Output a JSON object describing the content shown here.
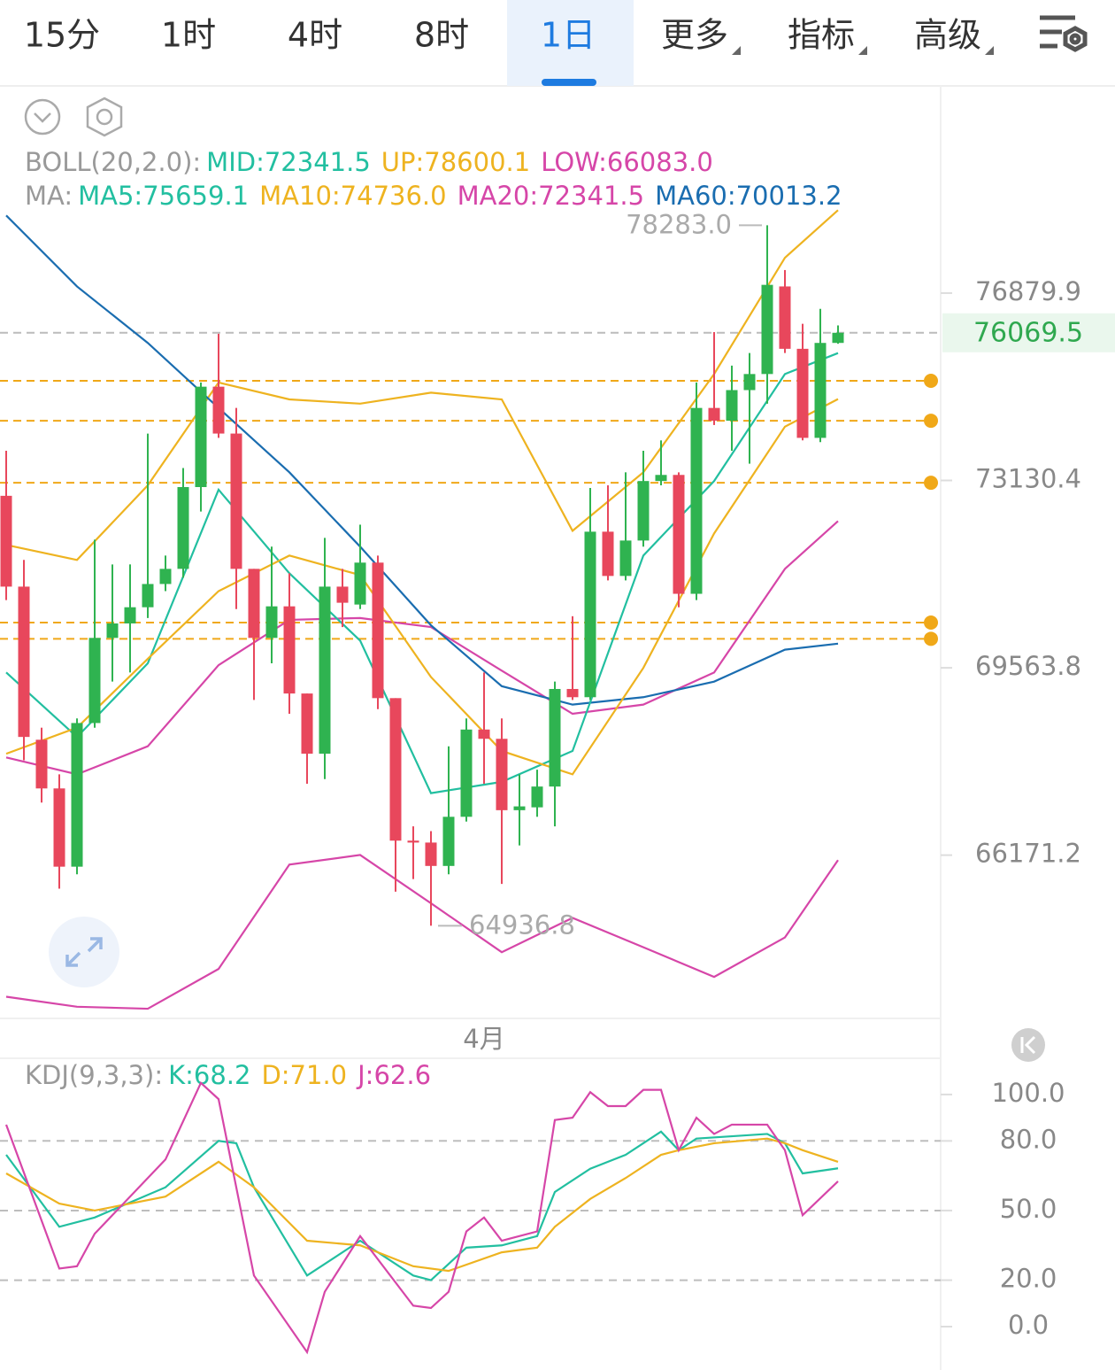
{
  "tabs": [
    {
      "label": "15分",
      "dropdown": false
    },
    {
      "label": "1时",
      "dropdown": false
    },
    {
      "label": "4时",
      "dropdown": false
    },
    {
      "label": "8时",
      "dropdown": false
    },
    {
      "label": "1日",
      "dropdown": false
    },
    {
      "label": "更多",
      "dropdown": true
    },
    {
      "label": "指标",
      "dropdown": true
    },
    {
      "label": "高级",
      "dropdown": true
    }
  ],
  "active_tab": 4,
  "chart_data": [
    {
      "type": "candlestick",
      "indicator_legends": [
        {
          "label": "BOLL(20,2.0):",
          "items": [
            {
              "text": "MID:72341.5",
              "color": "#22bfa0"
            },
            {
              "text": "UP:78600.1",
              "color": "#eeb320"
            },
            {
              "text": "LOW:66083.0",
              "color": "#d646a8"
            }
          ]
        },
        {
          "label": "MA:",
          "items": [
            {
              "text": "MA5:75659.1",
              "color": "#22bfa0"
            },
            {
              "text": "MA10:74736.0",
              "color": "#eeb320"
            },
            {
              "text": "MA20:72341.5",
              "color": "#d646a8"
            },
            {
              "text": "MA60:70013.2",
              "color": "#1a6db0"
            }
          ]
        }
      ],
      "open": [
        72831,
        71087,
        68241,
        67360,
        65968,
        68546,
        70121,
        70392,
        70697,
        71137,
        71425,
        73001,
        74983,
        74051,
        71425,
        70121,
        70714,
        69088,
        67987,
        71087,
        70748,
        71544,
        69003,
        66428,
        66394,
        65981,
        66852,
        68427,
        68258,
        66970,
        67021,
        67394,
        69172,
        69020,
        72137,
        71290,
        71967,
        73119,
        73238,
        70951,
        74559,
        74305,
        74915,
        75237,
        77016,
        75745,
        73966,
        75864
      ],
      "high": [
        73712,
        71595,
        68461,
        67614,
        68630,
        71984,
        71510,
        71510,
        74051,
        71679,
        73373,
        75067,
        76050,
        74559,
        71425,
        71849,
        71341,
        69088,
        72018,
        71425,
        72272,
        71679,
        69003,
        66682,
        66597,
        68122,
        68630,
        69477,
        68630,
        67614,
        67698,
        69308,
        70528,
        72984,
        73035,
        73289,
        73712,
        73916,
        73289,
        75067,
        76084,
        75406,
        75660,
        78283.0,
        77354,
        76253,
        76558,
        76219
      ],
      "low": [
        70832,
        67868,
        67106,
        65581,
        65835,
        68461,
        69308,
        69477,
        70494,
        71002,
        71256,
        72526,
        73966,
        70663,
        68969,
        69647,
        68715,
        67444,
        67529,
        70324,
        70663,
        68800,
        65530,
        65750,
        64936.8,
        65835,
        66767,
        67444,
        65666,
        66343,
        66852,
        66682,
        68969,
        68969,
        71205,
        71205,
        71849,
        73035,
        70697,
        70832,
        74220,
        73712,
        73458,
        74644,
        75660,
        73916,
        73882,
        75847
      ],
      "close": [
        71087,
        68292,
        67360,
        65968,
        68546,
        70121,
        70392,
        70697,
        71137,
        71425,
        73001,
        74983,
        74051,
        71425,
        70121,
        70714,
        69088,
        67987,
        71087,
        70782,
        71544,
        69003,
        66428,
        66394,
        65981,
        66852,
        68427,
        68258,
        66970,
        67038,
        67394,
        69172,
        69020,
        72137,
        71290,
        71967,
        73119,
        73238,
        70951,
        74559,
        74305,
        74915,
        75237,
        77049,
        75745,
        73966,
        75864,
        76069.5
      ],
      "up_color": "#2fb350",
      "down_color": "#e8475c",
      "line_x": [
        0,
        4,
        8,
        12,
        16,
        20,
        24,
        28,
        32,
        36,
        40,
        44,
        47
      ],
      "lines": [
        {
          "color": "#eeb320",
          "values": [
            71883,
            71595,
            73035,
            75067,
            74729,
            74644,
            74864,
            74729,
            72154,
            73289,
            75237,
            77608,
            78600.1
          ]
        },
        {
          "color": "#d646a8",
          "values": [
            63718,
            63548,
            63514,
            64192,
            66005,
            66174,
            65327,
            64480,
            65073,
            64565,
            64056,
            64734,
            66083.0
          ]
        },
        {
          "color": "#d646a8",
          "values": [
            67919,
            67614,
            68122,
            69613,
            70460,
            70494,
            70324,
            69511,
            68715,
            68884,
            69477,
            71425,
            72341.5
          ]
        },
        {
          "color": "#1a6db0",
          "values": [
            78489,
            77016,
            75864,
            74559,
            73289,
            71849,
            70358,
            69223,
            68884,
            69020,
            69308,
            69901,
            70013.2
          ]
        },
        {
          "color": "#22bfa0",
          "values": [
            69477,
            68291,
            69647,
            72950,
            71341,
            70070,
            67275,
            67478,
            68037,
            71679,
            73119,
            75237,
            75659.1
          ]
        },
        {
          "color": "#eeb320",
          "values": [
            67986,
            68461,
            69731,
            71002,
            71679,
            71307,
            69393,
            68037,
            67614,
            69562,
            72103,
            74187,
            74736.0
          ]
        }
      ],
      "alert_lines": [
        75101,
        74305,
        73085,
        70409,
        70104
      ],
      "alert_color": "#f0a818",
      "high_label": {
        "value": 78283.0,
        "label": "78283.0"
      },
      "low_label": {
        "value": 64936.8,
        "label": "64936.8"
      },
      "last_price": {
        "value": 76069.5,
        "label": "76069.5"
      },
      "log_scale": true,
      "ylim": [
        63350,
        81250
      ],
      "yticks": [
        76879.9,
        73130.4,
        69563.8,
        66171.2
      ],
      "xticks": [
        {
          "value": 27,
          "label": "4月"
        }
      ]
    },
    {
      "type": "line",
      "title": "KDJ(9,3,3):",
      "series": [
        {
          "name": "K:68.2",
          "color": "#22bfa0",
          "x": [
            0,
            3,
            5,
            9,
            12,
            13,
            14,
            17,
            20,
            23,
            24,
            26,
            28,
            30,
            31,
            33,
            35,
            37,
            38,
            39,
            41,
            43,
            44,
            45,
            47
          ],
          "values": [
            74,
            43,
            47,
            60,
            80,
            79,
            60,
            22,
            37,
            22,
            20,
            34,
            35,
            39,
            58,
            68,
            74,
            84,
            76,
            81,
            82,
            83,
            79,
            66,
            68.2
          ]
        },
        {
          "name": "D:71.0",
          "color": "#eeb320",
          "x": [
            0,
            3,
            5,
            9,
            12,
            14,
            17,
            20,
            23,
            25,
            28,
            30,
            31,
            33,
            35,
            37,
            38,
            40,
            43,
            44,
            45,
            47
          ],
          "values": [
            66,
            53,
            50,
            56,
            71,
            60,
            37,
            35,
            26,
            24,
            32,
            34,
            43,
            55,
            64,
            74,
            76,
            79,
            81,
            79,
            76,
            71.0
          ]
        },
        {
          "name": "J:62.6",
          "color": "#d646a8",
          "x": [
            0,
            3,
            4,
            5,
            9,
            11,
            12,
            14,
            17,
            18,
            20,
            23,
            24,
            25,
            26,
            27,
            28,
            30,
            31,
            32,
            33,
            34,
            35,
            36,
            37,
            38,
            39,
            40,
            41,
            43,
            44,
            45,
            47
          ],
          "values": [
            87,
            25,
            26,
            40,
            72,
            105,
            98,
            22,
            -11,
            15,
            39,
            9,
            8,
            15,
            41,
            47,
            37,
            41,
            89,
            90,
            101,
            95,
            95,
            102,
            102,
            76,
            90,
            83,
            87,
            87,
            76,
            48,
            62.6
          ]
        }
      ],
      "ylim": [
        -18.7,
        115.6
      ],
      "yticks": [
        {
          "value": 100,
          "label": "100.0"
        },
        {
          "value": 80,
          "label": "80.0"
        },
        {
          "value": 50,
          "label": "50.0"
        },
        {
          "value": 20,
          "label": "20.0"
        },
        {
          "value": 0,
          "label": "0.0"
        }
      ]
    }
  ]
}
